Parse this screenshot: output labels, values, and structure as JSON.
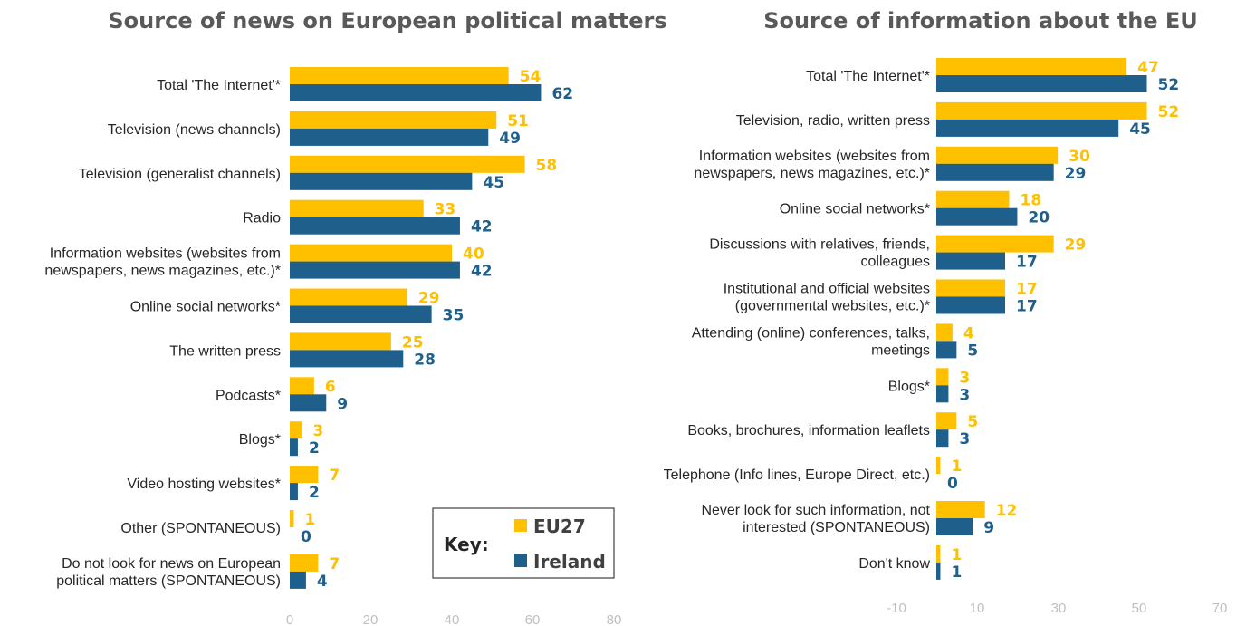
{
  "colors": {
    "eu27": "#FFC000",
    "ireland": "#1F5F8B"
  },
  "key": {
    "title": "Key:",
    "eu27": "EU27",
    "ireland": "Ireland"
  },
  "chart_data": [
    {
      "type": "bar",
      "orientation": "horizontal",
      "title": "Source of news on European political matters",
      "xlim": [
        0,
        80
      ],
      "xticks": [
        "0",
        "20",
        "40",
        "60",
        "80"
      ],
      "categories": [
        [
          "Total 'The Internet'*"
        ],
        [
          "Television (news channels)"
        ],
        [
          "Television (generalist channels)"
        ],
        [
          "Radio"
        ],
        [
          "Information websites (websites from",
          "newspapers, news magazines, etc.)*"
        ],
        [
          "Online social networks*"
        ],
        [
          "The written press"
        ],
        [
          "Podcasts*"
        ],
        [
          "Blogs*"
        ],
        [
          "Video hosting websites*"
        ],
        [
          "Other (SPONTANEOUS)"
        ],
        [
          "Do not look for news on European",
          "political matters (SPONTANEOUS)"
        ]
      ],
      "series": [
        {
          "name": "EU27",
          "values": [
            54,
            51,
            58,
            33,
            40,
            29,
            25,
            6,
            3,
            7,
            1,
            7
          ]
        },
        {
          "name": "Ireland",
          "values": [
            62,
            49,
            45,
            42,
            42,
            35,
            28,
            9,
            2,
            2,
            0,
            4
          ]
        }
      ]
    },
    {
      "type": "bar",
      "orientation": "horizontal",
      "title": "Source of information about the EU",
      "xlim": [
        -10,
        70
      ],
      "xticks": [
        "-10",
        "10",
        "30",
        "50",
        "70"
      ],
      "categories": [
        [
          "Total 'The Internet'*"
        ],
        [
          "Television, radio, written press"
        ],
        [
          "Information websites (websites from",
          "newspapers, news magazines, etc.)*"
        ],
        [
          "Online social networks*"
        ],
        [
          "Discussions with relatives, friends,",
          "colleagues"
        ],
        [
          "Institutional and official websites",
          "(governmental websites, etc.)*"
        ],
        [
          "Attending (online) conferences, talks,",
          "meetings"
        ],
        [
          "Blogs*"
        ],
        [
          "Books, brochures, information leaflets"
        ],
        [
          "Telephone (Info lines, Europe Direct, etc.)"
        ],
        [
          "Never look for such information, not",
          "interested (SPONTANEOUS)"
        ],
        [
          "Don't know"
        ]
      ],
      "series": [
        {
          "name": "EU27",
          "values": [
            47,
            52,
            30,
            18,
            29,
            17,
            4,
            3,
            5,
            1,
            12,
            1
          ]
        },
        {
          "name": "Ireland",
          "values": [
            52,
            45,
            29,
            20,
            17,
            17,
            5,
            3,
            3,
            0,
            9,
            1
          ]
        }
      ]
    }
  ]
}
